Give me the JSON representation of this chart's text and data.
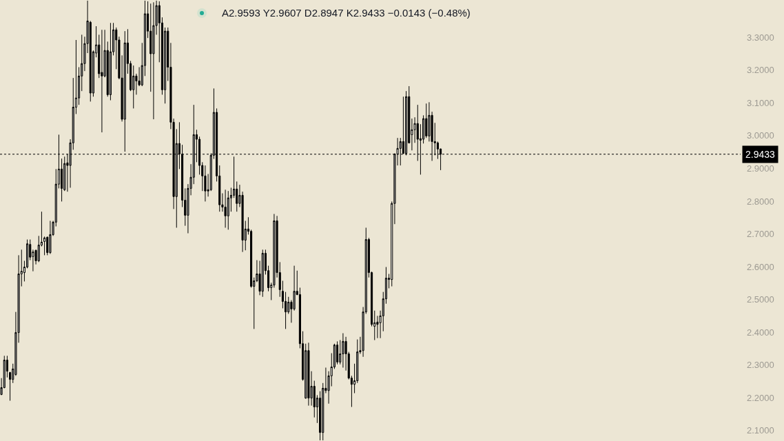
{
  "chart_data": {
    "type": "candlestick",
    "categories": [
      null,
      null,
      null,
      null,
      null,
      null,
      null,
      null,
      null,
      null,
      null,
      null,
      null,
      null,
      null,
      null,
      null,
      null,
      null,
      null,
      null,
      null,
      null,
      null,
      null,
      null,
      null,
      null,
      null,
      null,
      null,
      null,
      null,
      null,
      null,
      null,
      null,
      null,
      null,
      null,
      null,
      null,
      null,
      null,
      null,
      null,
      null,
      null,
      null,
      null,
      null,
      null,
      null,
      null,
      null,
      null,
      null,
      null,
      null,
      null,
      null,
      null,
      null,
      null,
      null,
      null,
      null,
      null,
      null,
      null,
      null,
      null,
      null,
      null,
      null,
      null,
      null,
      null,
      null,
      null,
      null,
      null,
      null,
      null,
      null,
      null,
      null,
      null,
      null,
      null,
      null,
      null,
      null,
      null,
      null,
      null,
      null,
      null,
      null,
      null,
      null,
      null,
      null,
      null,
      null,
      null,
      null,
      null,
      null,
      null,
      null,
      null,
      null,
      null,
      null,
      null,
      null,
      null,
      null,
      null,
      null,
      null,
      null,
      null,
      null,
      null,
      null,
      null,
      null,
      null,
      null,
      null,
      null,
      null,
      null,
      null,
      null,
      null,
      null,
      null,
      null,
      null,
      null,
      null,
      null,
      null,
      null,
      null,
      null,
      null,
      null,
      null,
      null,
      null,
      null,
      null,
      null,
      null,
      null,
      null,
      null,
      null,
      null,
      null,
      null,
      null,
      null,
      null,
      null,
      null,
      null,
      null,
      null,
      null,
      null,
      null,
      null,
      null,
      null,
      null,
      null,
      null,
      null,
      null,
      null,
      null,
      null,
      null,
      null,
      null,
      null,
      null,
      null,
      null,
      null,
      null,
      null,
      null,
      null,
      null,
      null,
      null,
      null,
      null,
      null,
      null,
      null,
      null,
      null,
      null,
      null,
      null,
      null,
      null,
      null,
      null,
      null,
      null,
      null,
      null,
      null,
      null,
      null,
      null,
      null,
      null,
      null,
      null,
      null,
      null,
      null,
      null,
      null,
      null,
      null,
      null,
      null,
      null,
      null,
      null,
      null,
      null,
      null,
      null,
      null,
      null,
      null,
      null,
      null,
      null,
      null,
      null,
      null,
      null,
      null,
      null,
      null,
      null
    ],
    "ohlc": [
      [
        2.21,
        2.26,
        2.208,
        2.231
      ],
      [
        2.231,
        2.328,
        2.229,
        2.315
      ],
      [
        2.315,
        2.328,
        2.262,
        2.281
      ],
      [
        2.277,
        2.279,
        2.191,
        2.256
      ],
      [
        2.256,
        2.304,
        2.245,
        2.288
      ],
      [
        2.271,
        2.462,
        2.267,
        2.399
      ],
      [
        2.399,
        2.635,
        2.368,
        2.578
      ],
      [
        2.578,
        2.652,
        2.54,
        2.586
      ],
      [
        2.582,
        2.618,
        2.555,
        2.599
      ],
      [
        2.599,
        2.683,
        2.595,
        2.67
      ],
      [
        2.668,
        2.683,
        2.62,
        2.629
      ],
      [
        2.631,
        2.652,
        2.586,
        2.645
      ],
      [
        2.65,
        2.652,
        2.607,
        2.618
      ],
      [
        2.618,
        2.694,
        2.614,
        2.666
      ],
      [
        2.666,
        2.768,
        2.662,
        2.675
      ],
      [
        2.677,
        2.692,
        2.635,
        2.688
      ],
      [
        2.69,
        2.692,
        2.635,
        2.643
      ],
      [
        2.643,
        2.74,
        2.639,
        2.698
      ],
      [
        2.698,
        2.74,
        2.694,
        2.736
      ],
      [
        2.736,
        2.898,
        2.723,
        2.852
      ],
      [
        2.852,
        3.003,
        2.839,
        2.898
      ],
      [
        2.898,
        2.93,
        2.799,
        2.839
      ],
      [
        2.835,
        2.936,
        2.831,
        2.915
      ],
      [
        2.917,
        2.944,
        2.829,
        2.909
      ],
      [
        2.909,
        2.989,
        2.841,
        2.978
      ],
      [
        2.978,
        3.176,
        2.957,
        3.087
      ],
      [
        3.087,
        3.292,
        3.066,
        3.115
      ],
      [
        3.115,
        3.209,
        3.094,
        3.182
      ],
      [
        3.182,
        3.308,
        3.136,
        3.22
      ],
      [
        3.22,
        3.302,
        3.197,
        3.281
      ],
      [
        3.281,
        3.412,
        3.252,
        3.35
      ],
      [
        3.346,
        3.35,
        3.104,
        3.13
      ],
      [
        3.13,
        3.26,
        3.119,
        3.256
      ],
      [
        3.252,
        3.334,
        3.239,
        3.277
      ],
      [
        3.277,
        3.308,
        3.176,
        3.189
      ],
      [
        3.193,
        3.323,
        3.01,
        3.182
      ],
      [
        3.182,
        3.323,
        3.178,
        3.26
      ],
      [
        3.26,
        3.287,
        3.119,
        3.125
      ],
      [
        3.125,
        3.344,
        3.108,
        3.256
      ],
      [
        3.256,
        3.344,
        3.245,
        3.323
      ],
      [
        3.323,
        3.33,
        3.203,
        3.292
      ],
      [
        3.292,
        3.302,
        3.172,
        3.176
      ],
      [
        3.176,
        3.245,
        3.043,
        3.05
      ],
      [
        3.05,
        3.319,
        2.951,
        3.283
      ],
      [
        3.283,
        3.325,
        3.189,
        3.22
      ],
      [
        3.22,
        3.228,
        3.136,
        3.14
      ],
      [
        3.14,
        3.214,
        3.083,
        3.182
      ],
      [
        3.182,
        3.189,
        3.125,
        3.167
      ],
      [
        3.167,
        3.209,
        3.151,
        3.155
      ],
      [
        3.155,
        3.283,
        3.151,
        3.214
      ],
      [
        3.214,
        3.412,
        3.182,
        3.372
      ],
      [
        3.372,
        3.41,
        3.298,
        3.319
      ],
      [
        3.319,
        3.403,
        3.134,
        3.25
      ],
      [
        3.25,
        3.407,
        3.05,
        3.336
      ],
      [
        3.336,
        3.412,
        3.308,
        3.397
      ],
      [
        3.397,
        3.41,
        3.224,
        3.344
      ],
      [
        3.344,
        3.361,
        3.125,
        3.14
      ],
      [
        3.14,
        3.33,
        3.098,
        3.319
      ],
      [
        3.319,
        3.33,
        3.167,
        3.209
      ],
      [
        3.209,
        3.283,
        3.02,
        3.041
      ],
      [
        3.041,
        3.052,
        2.776,
        2.814
      ],
      [
        2.814,
        3.02,
        2.719,
        2.976
      ],
      [
        2.976,
        3.041,
        2.898,
        2.944
      ],
      [
        2.944,
        2.972,
        2.782,
        2.803
      ],
      [
        2.803,
        2.839,
        2.725,
        2.757
      ],
      [
        2.757,
        2.852,
        2.702,
        2.839
      ],
      [
        2.839,
        2.913,
        2.818,
        2.873
      ],
      [
        2.873,
        3.094,
        2.852,
        3.003
      ],
      [
        3.003,
        3.018,
        2.919,
        2.989
      ],
      [
        2.989,
        2.997,
        2.881,
        2.909
      ],
      [
        2.909,
        2.919,
        2.831,
        2.877
      ],
      [
        2.877,
        2.909,
        2.799,
        2.831
      ],
      [
        2.831,
        2.883,
        2.814,
        2.835
      ],
      [
        2.835,
        2.946,
        2.831,
        2.94
      ],
      [
        2.94,
        3.144,
        2.929,
        3.071
      ],
      [
        3.071,
        3.083,
        2.86,
        2.877
      ],
      [
        2.877,
        2.909,
        2.768,
        2.789
      ],
      [
        2.789,
        2.824,
        2.768,
        2.782
      ],
      [
        2.782,
        2.835,
        2.719,
        2.755
      ],
      [
        2.755,
        2.831,
        2.713,
        2.81
      ],
      [
        2.81,
        2.841,
        2.768,
        2.818
      ],
      [
        2.818,
        2.936,
        2.81,
        2.837
      ],
      [
        2.837,
        2.86,
        2.768,
        2.793
      ],
      [
        2.793,
        2.85,
        2.782,
        2.818
      ],
      [
        2.818,
        2.829,
        2.645,
        2.681
      ],
      [
        2.681,
        2.74,
        2.65,
        2.715
      ],
      [
        2.715,
        2.751,
        2.698,
        2.708
      ],
      [
        2.708,
        2.713,
        2.536,
        2.54
      ],
      [
        2.54,
        2.567,
        2.41,
        2.557
      ],
      [
        2.557,
        2.62,
        2.553,
        2.578
      ],
      [
        2.578,
        2.618,
        2.513,
        2.525
      ],
      [
        2.525,
        2.652,
        2.508,
        2.641
      ],
      [
        2.641,
        2.652,
        2.576,
        2.588
      ],
      [
        2.588,
        2.603,
        2.525,
        2.536
      ],
      [
        2.536,
        2.551,
        2.498,
        2.544
      ],
      [
        2.544,
        2.761,
        2.536,
        2.74
      ],
      [
        2.74,
        2.755,
        2.567,
        2.582
      ],
      [
        2.582,
        2.614,
        2.508,
        2.53
      ],
      [
        2.525,
        2.557,
        2.473,
        2.494
      ],
      [
        2.494,
        2.523,
        2.41,
        2.462
      ],
      [
        2.462,
        2.508,
        2.456,
        2.492
      ],
      [
        2.492,
        2.498,
        2.429,
        2.471
      ],
      [
        2.471,
        2.603,
        2.466,
        2.525
      ],
      [
        2.525,
        2.588,
        2.513,
        2.515
      ],
      [
        2.515,
        2.536,
        2.351,
        2.365
      ],
      [
        2.365,
        2.403,
        2.252,
        2.256
      ],
      [
        2.199,
        2.365,
        2.197,
        2.344
      ],
      [
        2.344,
        2.368,
        2.176,
        2.199
      ],
      [
        2.199,
        2.281,
        2.176,
        2.235
      ],
      [
        2.235,
        2.252,
        2.14,
        2.172
      ],
      [
        2.172,
        2.208,
        2.123,
        2.199
      ],
      [
        2.199,
        2.22,
        2.07,
        2.094
      ],
      [
        2.094,
        2.245,
        2.07,
        2.229
      ],
      [
        2.229,
        2.292,
        2.214,
        2.222
      ],
      [
        2.222,
        2.281,
        2.182,
        2.267
      ],
      [
        2.267,
        2.336,
        2.235,
        2.294
      ],
      [
        2.294,
        2.365,
        2.288,
        2.361
      ],
      [
        2.361,
        2.372,
        2.302,
        2.309
      ],
      [
        2.309,
        2.376,
        2.302,
        2.334
      ],
      [
        2.334,
        2.397,
        2.292,
        2.372
      ],
      [
        2.372,
        2.386,
        2.283,
        2.334
      ],
      [
        2.334,
        2.34,
        2.256,
        2.26
      ],
      [
        2.26,
        2.267,
        2.172,
        2.241
      ],
      [
        2.241,
        2.304,
        2.214,
        2.252
      ],
      [
        2.252,
        2.378,
        2.245,
        2.34
      ],
      [
        2.344,
        2.386,
        2.334,
        2.34
      ],
      [
        2.344,
        2.477,
        2.325,
        2.462
      ],
      [
        2.462,
        2.719,
        2.456,
        2.683
      ],
      [
        2.683,
        2.688,
        2.567,
        2.582
      ],
      [
        2.582,
        2.585,
        2.418,
        2.424
      ],
      [
        2.418,
        2.466,
        2.376,
        2.429
      ],
      [
        2.431,
        2.45,
        2.382,
        2.424
      ],
      [
        2.429,
        2.466,
        2.382,
        2.45
      ],
      [
        2.45,
        2.523,
        2.403,
        2.502
      ],
      [
        2.502,
        2.599,
        2.487,
        2.565
      ],
      [
        2.565,
        2.578,
        2.534,
        2.561
      ],
      [
        2.561,
        2.799,
        2.54,
        2.793
      ],
      [
        2.793,
        2.946,
        2.73,
        2.944
      ],
      [
        2.944,
        2.993,
        2.909,
        2.961
      ],
      [
        2.961,
        2.993,
        2.909,
        2.982
      ],
      [
        2.982,
        3.119,
        2.944,
        2.946
      ],
      [
        2.946,
        3.136,
        2.94,
        3.119
      ],
      [
        3.119,
        3.151,
        2.976,
        2.978
      ],
      [
        3.003,
        3.052,
        2.955,
        3.018
      ],
      [
        3.018,
        3.056,
        2.978,
        3.037
      ],
      [
        3.037,
        3.094,
        2.923,
        2.989
      ],
      [
        2.991,
        3.035,
        2.881,
        2.986
      ],
      [
        2.989,
        3.062,
        2.976,
        3.052
      ],
      [
        3.052,
        3.098,
        2.993,
        2.999
      ],
      [
        2.999,
        3.102,
        2.982,
        3.062
      ],
      [
        3.062,
        3.073,
        2.923,
        2.982
      ],
      [
        2.982,
        3.039,
        2.94,
        2.978
      ],
      [
        2.978,
        2.982,
        2.929,
        2.959
      ],
      [
        2.9593,
        2.9607,
        2.8947,
        2.9433
      ],
      null,
      null,
      null,
      null,
      null,
      null,
      null,
      null,
      null,
      null,
      null,
      null,
      null,
      null,
      null,
      null,
      null,
      null,
      null,
      null,
      null,
      null,
      null,
      null,
      null,
      null,
      null,
      null,
      null,
      null,
      null,
      null,
      null,
      null,
      null,
      null,
      null,
      null,
      null,
      null,
      null,
      null,
      null,
      null,
      null,
      null,
      null,
      null,
      null,
      null,
      null,
      null,
      null,
      null,
      null,
      null,
      null,
      null,
      null,
      null,
      null,
      null,
      null,
      null,
      null,
      null,
      null,
      null,
      null,
      null,
      null,
      null,
      null,
      null,
      null,
      null,
      null,
      null,
      null,
      null,
      null,
      null,
      null,
      null,
      null,
      null,
      null,
      null,
      null,
      null,
      null,
      null,
      null,
      null,
      null,
      null,
      null,
      null,
      null,
      null,
      null,
      null,
      null,
      null
    ],
    "colors": [
      "#8c8c8c",
      "#8c8c8c",
      "#000000",
      "#000000",
      "#8c8c8c",
      "#8c8c8c",
      "#8c8c8c",
      "#f5f3ec",
      "#f5f3ec",
      "#8c8c8c",
      "#000000",
      "#f5f3ec",
      "#000000",
      "#8c8c8c",
      "#f5f3ec",
      "#f5f3ec",
      "#000000",
      "#8c8c8c",
      "#8c8c8c",
      "#8c8c8c",
      "#f5f3ec",
      "#000000",
      "#8c8c8c",
      "#000000",
      "#8c8c8c",
      "#8c8c8c",
      "#f5f3ec",
      "#8c8c8c",
      "#8c8c8c",
      "#8c8c8c",
      "#8c8c8c",
      "#000000",
      "#8c8c8c",
      "#f5f3ec",
      "#000000",
      "#000000",
      "#8c8c8c",
      "#000000",
      "#8c8c8c",
      "#8c8c8c",
      "#000000",
      "#000000",
      "#000000",
      "#8c8c8c",
      "#000000",
      "#000000",
      "#8c8c8c",
      "#000000",
      "#000000",
      "#8c8c8c",
      "#8c8c8c",
      "#000000",
      "#000000",
      "#8c8c8c",
      "#8c8c8c",
      "#000000",
      "#000000",
      "#8c8c8c",
      "#000000",
      "#000000",
      "#000000",
      "#8c8c8c",
      "#000000",
      "#000000",
      "#000000",
      "#8c8c8c",
      "#8c8c8c",
      "#8c8c8c",
      "#000000",
      "#000000",
      "#000000",
      "#000000",
      "#000000",
      "#8c8c8c",
      "#8c8c8c",
      "#000000",
      "#000000",
      "#000000",
      "#000000",
      "#8c8c8c",
      "#8c8c8c",
      "#8c8c8c",
      "#000000",
      "#8c8c8c",
      "#000000",
      "#8c8c8c",
      "#000000",
      "#000000",
      "#8c8c8c",
      "#8c8c8c",
      "#000000",
      "#8c8c8c",
      "#000000",
      "#000000",
      "#f5f3ec",
      "#8c8c8c",
      "#000000",
      "#000000",
      "#000000",
      "#000000",
      "#8c8c8c",
      "#000000",
      "#8c8c8c",
      "#000000",
      "#000000",
      "#000000",
      "#8c8c8c",
      "#000000",
      "#8c8c8c",
      "#000000",
      "#8c8c8c",
      "#000000",
      "#8c8c8c",
      "#000000",
      "#8c8c8c",
      "#f5f3ec",
      "#8c8c8c",
      "#000000",
      "#8c8c8c",
      "#8c8c8c",
      "#000000",
      "#000000",
      "#000000",
      "#f5f3ec",
      "#8c8c8c",
      "#000000",
      "#8c8c8c",
      "#8c8c8c",
      "#000000",
      "#000000",
      "#f5f3ec",
      "#000000",
      "#f5f3ec",
      "#8c8c8c",
      "#8c8c8c",
      "#000000",
      "#f5f3ec",
      "#8c8c8c",
      "#f5f3ec",
      "#8c8c8c",
      "#000000",
      "#8c8c8c",
      "#000000",
      "#f5f3ec",
      "#f5f3ec",
      "#000000",
      "#000000",
      "#8c8c8c",
      "#000000",
      "#8c8c8c",
      "#000000",
      "#000000",
      "#000000",
      "#000000",
      null,
      null,
      null,
      null,
      null,
      null,
      null,
      null,
      null,
      null,
      null,
      null,
      null,
      null,
      null,
      null,
      null,
      null,
      null,
      null,
      null,
      null,
      null,
      null,
      null,
      null,
      null,
      null,
      null,
      null,
      null,
      null,
      null,
      null,
      null,
      null,
      null,
      null,
      null,
      null,
      null,
      null,
      null,
      null,
      null,
      null,
      null,
      null,
      null,
      null,
      null,
      null,
      null,
      null,
      null,
      null,
      null,
      null,
      null,
      null,
      null,
      null,
      null,
      null,
      null,
      null,
      null,
      null,
      null,
      null,
      null,
      null,
      null,
      null,
      null,
      null,
      null,
      null,
      null,
      null,
      null,
      null,
      null,
      null,
      null,
      null,
      null,
      null,
      null,
      null,
      null,
      null,
      null,
      null,
      null,
      null,
      null,
      null,
      null,
      null,
      null,
      null,
      null,
      null
    ],
    "ylim": [
      2.068,
      3.414
    ],
    "yticks": [
      {
        "value": 2.1,
        "label": "2.1000"
      },
      {
        "value": 2.2,
        "label": "2.2000"
      },
      {
        "value": 2.3,
        "label": "2.3000"
      },
      {
        "value": 2.4,
        "label": "2.4000"
      },
      {
        "value": 2.5,
        "label": "2.5000"
      },
      {
        "value": 2.6,
        "label": "2.6000"
      },
      {
        "value": 2.7,
        "label": "2.7000"
      },
      {
        "value": 2.8,
        "label": "2.8000"
      },
      {
        "value": 2.9,
        "label": "2.9000"
      },
      {
        "value": 3.0,
        "label": "3.0000"
      },
      {
        "value": 3.1,
        "label": "3.1000"
      },
      {
        "value": 3.2,
        "label": "3.2000"
      },
      {
        "value": 3.3,
        "label": "3.3000"
      }
    ],
    "tick_labels": "y",
    "ref_lines": [
      {
        "axis": "y",
        "value": 2.9433,
        "label": "2.9433",
        "line_style": "dotted",
        "color": "#000000"
      }
    ],
    "annotations": [
      "A2.9593 Y2.9607 D2.8947 K2.9433 −0.0143 (−0.48%)"
    ]
  }
}
